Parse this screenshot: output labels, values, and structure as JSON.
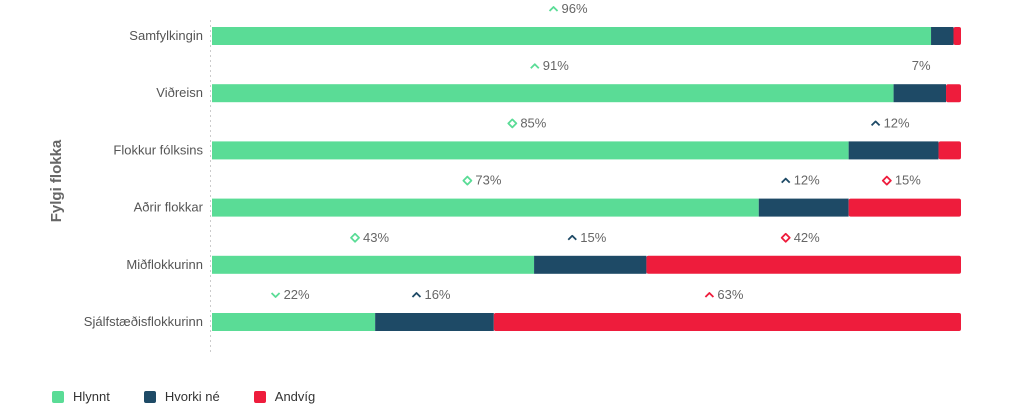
{
  "chart_data": {
    "type": "bar",
    "orientation": "horizontal",
    "stacked": true,
    "ylabel": "Fylgi flokka",
    "categories": [
      "Samfylkingin",
      "Viðreisn",
      "Flokkur fólksins",
      "Aðrir flokkar",
      "Miðflokkurinn",
      "Sjálfstæðisflokkurinn"
    ],
    "xlim": [
      0,
      100
    ],
    "series": [
      {
        "name": "Hlynnt",
        "color": "#5ADC96",
        "values": [
          96,
          91,
          85,
          73,
          43,
          22
        ]
      },
      {
        "name": "Hvorki né",
        "color": "#1E4A66",
        "values": [
          3,
          7,
          12,
          12,
          15,
          16
        ]
      },
      {
        "name": "Andvíg",
        "color": "#EE1C3C",
        "values": [
          1,
          2,
          3,
          15,
          42,
          63
        ]
      }
    ],
    "labels": [
      [
        "96%",
        "",
        ""
      ],
      [
        "91%",
        "7%",
        ""
      ],
      [
        "85%",
        "12%",
        ""
      ],
      [
        "73%",
        "12%",
        "15%"
      ],
      [
        "43%",
        "15%",
        "42%"
      ],
      [
        "22%",
        "16%",
        "63%"
      ]
    ],
    "markers": [
      [
        "up",
        "",
        ""
      ],
      [
        "up",
        "",
        ""
      ],
      [
        "diamond",
        "up",
        ""
      ],
      [
        "diamond",
        "up",
        "diamond"
      ],
      [
        "diamond",
        "up",
        "diamond"
      ],
      [
        "down",
        "up",
        "up"
      ]
    ],
    "legend_position": "bottom-left",
    "grid": false
  }
}
